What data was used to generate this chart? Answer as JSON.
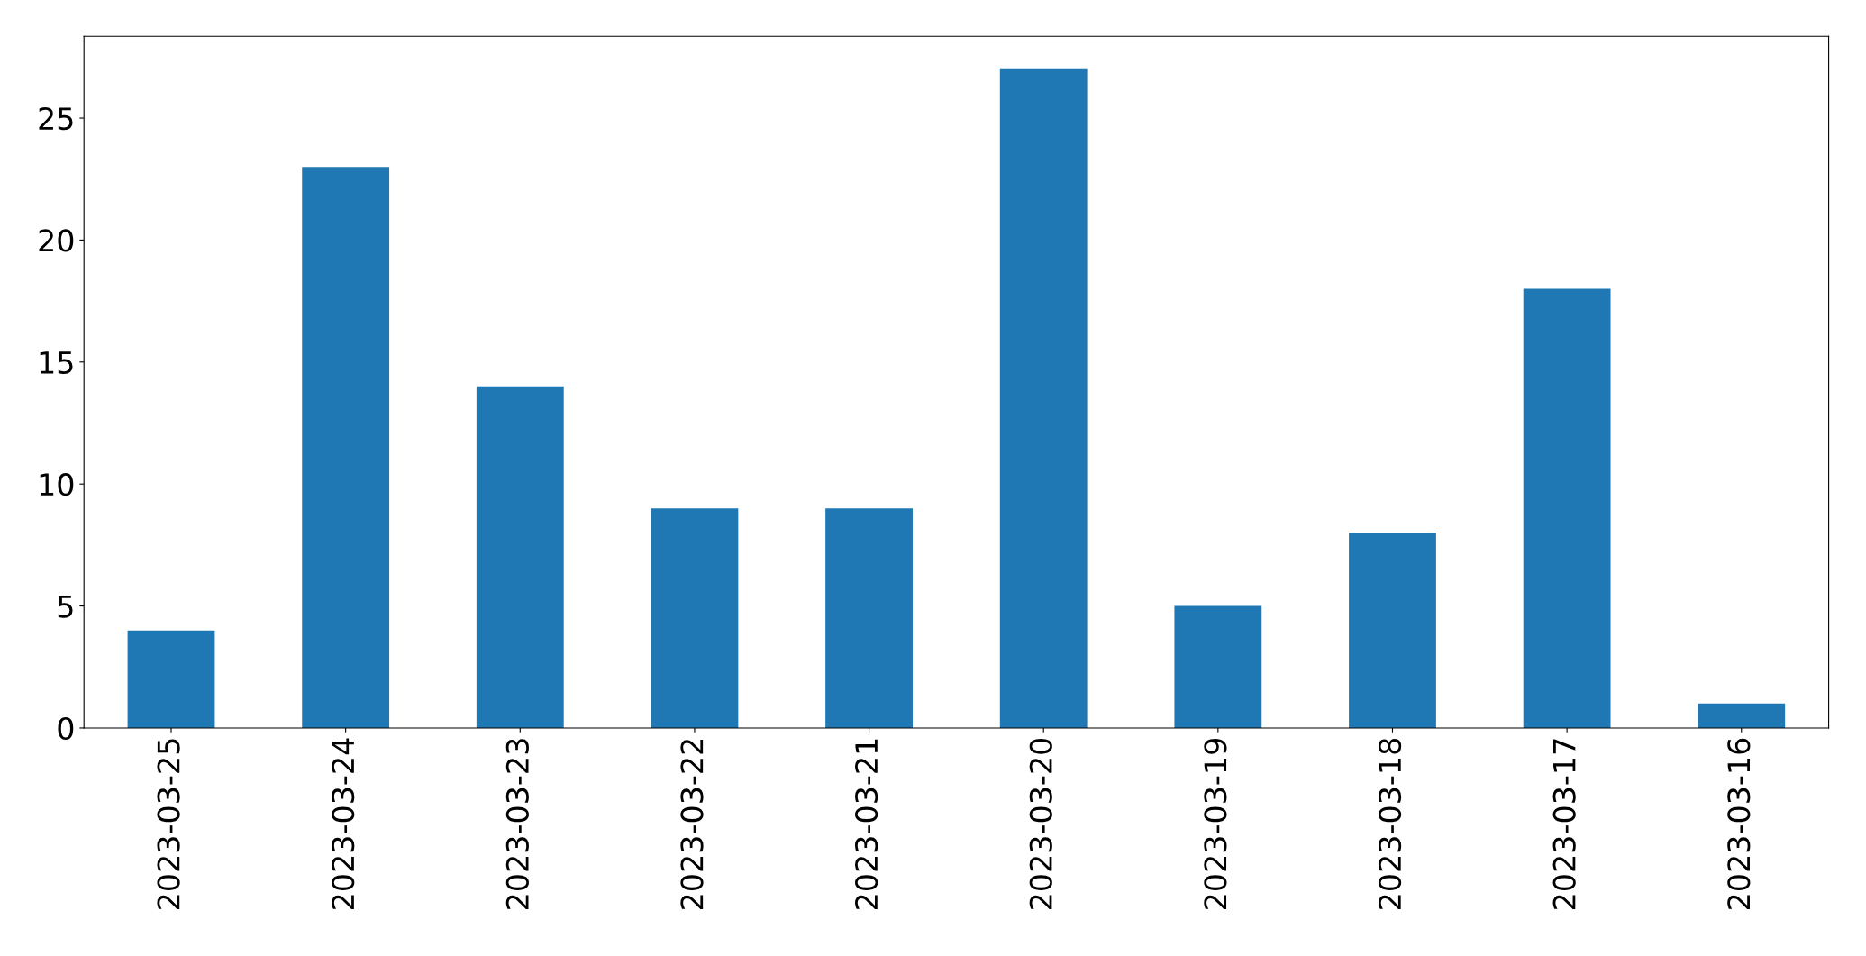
{
  "chart_data": {
    "type": "bar",
    "categories": [
      "2023-03-25",
      "2023-03-24",
      "2023-03-23",
      "2023-03-22",
      "2023-03-21",
      "2023-03-20",
      "2023-03-19",
      "2023-03-18",
      "2023-03-17",
      "2023-03-16"
    ],
    "values": [
      4,
      23,
      14,
      9,
      9,
      27,
      5,
      8,
      18,
      1
    ],
    "color": "#1f77b4",
    "ylim": [
      0,
      28.35
    ],
    "yticks": [
      0,
      5,
      10,
      15,
      20,
      25
    ],
    "grid": false,
    "legend": false
  }
}
